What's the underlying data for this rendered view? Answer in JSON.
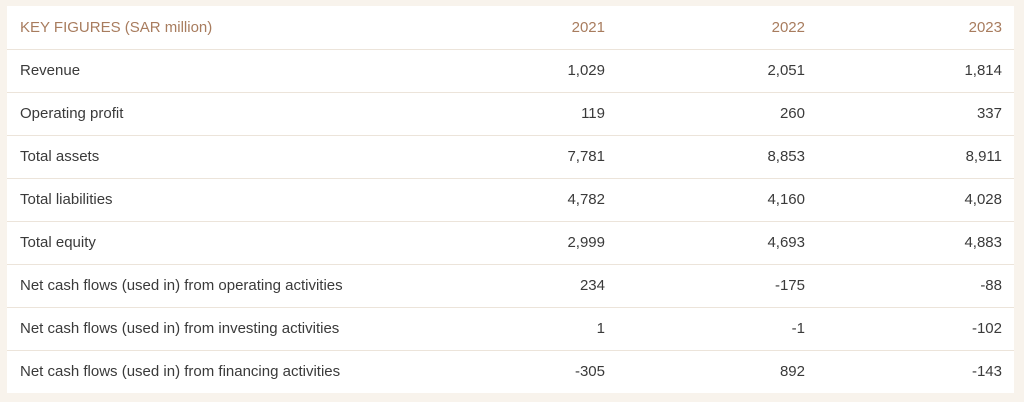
{
  "table": {
    "header": {
      "label": "KEY FIGURES (SAR million)",
      "years": [
        "2021",
        "2022",
        "2023"
      ]
    },
    "rows": [
      {
        "label": "Revenue",
        "values": [
          "1,029",
          "2,051",
          "1,814"
        ]
      },
      {
        "label": "Operating profit",
        "values": [
          "119",
          "260",
          "337"
        ]
      },
      {
        "label": "Total assets",
        "values": [
          "7,781",
          "8,853",
          "8,911"
        ]
      },
      {
        "label": "Total liabilities",
        "values": [
          "4,782",
          "4,160",
          "4,028"
        ]
      },
      {
        "label": "Total equity",
        "values": [
          "2,999",
          "4,693",
          "4,883"
        ]
      },
      {
        "label": "Net cash flows (used in) from operating activities",
        "values": [
          "234",
          "-175",
          "-88"
        ]
      },
      {
        "label": "Net cash flows (used in) from investing activities",
        "values": [
          "1",
          "-1",
          "-102"
        ]
      },
      {
        "label": "Net cash flows (used in) from financing activities",
        "values": [
          "-305",
          "892",
          "-143"
        ]
      }
    ]
  },
  "colors": {
    "page_background": "#f8f3ec",
    "header_text": "#a87c5e",
    "body_text": "#3a3a3a",
    "row_divider": "#ece4da"
  }
}
